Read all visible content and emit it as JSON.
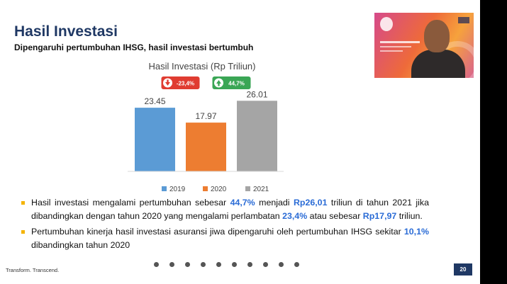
{
  "slide": {
    "title": "Hasil Investasi",
    "subtitle": "Dipengaruhi pertumbuhan IHSG, hasil investasi bertumbuh",
    "page_number": "20",
    "footer_text": "Transform. Transcend."
  },
  "chart_data": {
    "type": "bar",
    "title": "Hasil Investasi (Rp Triliun)",
    "categories": [
      "2019",
      "2020",
      "2021"
    ],
    "values": [
      23.45,
      17.97,
      26.01
    ],
    "value_labels": [
      "23.45",
      "17.97",
      "26.01"
    ],
    "colors": [
      "#5b9bd5",
      "#ed7d31",
      "#a5a5a5"
    ],
    "ylim": [
      0,
      30
    ],
    "grid": false,
    "legend": "bottom",
    "annotations": [
      {
        "label": "-23,4%",
        "direction": "down",
        "color": "#e03c31"
      },
      {
        "label": "44,7%",
        "direction": "up",
        "color": "#3aa655"
      }
    ]
  },
  "bullets": [
    {
      "segments": [
        {
          "text": "Hasil investasi mengalami pertumbuhan sebesar ",
          "hl": false
        },
        {
          "text": "44,7%",
          "hl": true
        },
        {
          "text": " menjadi ",
          "hl": false
        },
        {
          "text": "Rp26,01",
          "hl": true
        },
        {
          "text": " triliun di tahun 2021 jika dibandingkan dengan tahun 2020 yang mengalami perlambatan ",
          "hl": false
        },
        {
          "text": "23,4%",
          "hl": true
        },
        {
          "text": " atau sebesar ",
          "hl": false
        },
        {
          "text": "Rp17,97",
          "hl": true
        },
        {
          "text": " triliun.",
          "hl": false
        }
      ]
    },
    {
      "segments": [
        {
          "text": "Pertumbuhan kinerja hasil investasi asuransi jiwa dipengaruhi oleh pertumbuhan IHSG sekitar ",
          "hl": false
        },
        {
          "text": "10,1%",
          "hl": true
        },
        {
          "text": " dibandingkan tahun 2020",
          "hl": false
        }
      ]
    }
  ],
  "webcam": {
    "icon": "presenter-video-feed"
  },
  "slide_dots": {
    "count": 10,
    "icon": "slide-indicator-dot"
  }
}
